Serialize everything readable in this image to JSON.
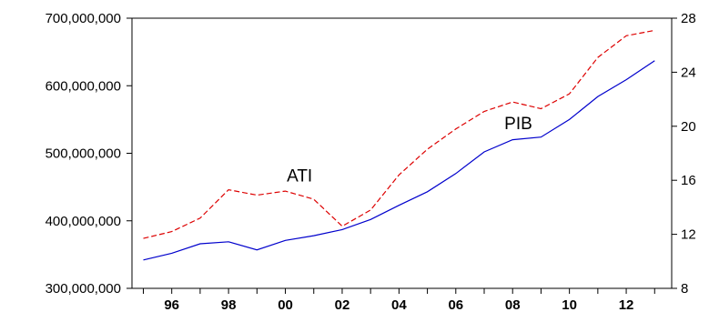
{
  "chart_data": {
    "type": "line",
    "title": "",
    "x": [
      1995,
      1996,
      1997,
      1998,
      1999,
      2000,
      2001,
      2002,
      2003,
      2004,
      2005,
      2006,
      2007,
      2008,
      2009,
      2010,
      2011,
      2012,
      2013
    ],
    "xtick_values": [
      1996,
      1998,
      2000,
      2002,
      2004,
      2006,
      2008,
      2010,
      2012
    ],
    "xtick_labels": [
      "96",
      "98",
      "00",
      "02",
      "04",
      "06",
      "08",
      "10",
      "12"
    ],
    "xlim": [
      1994.6,
      2013.6
    ],
    "left_axis": {
      "ylim": [
        300000000,
        700000000
      ],
      "ticks": [
        300000000,
        400000000,
        500000000,
        600000000,
        700000000
      ],
      "tick_labels": [
        "300,000,000",
        "400,000,000",
        "500,000,000",
        "600,000,000",
        "700,000,000"
      ]
    },
    "right_axis": {
      "ylim": [
        8,
        28
      ],
      "ticks": [
        8,
        12,
        16,
        20,
        24,
        28
      ],
      "tick_labels": [
        "8",
        "12",
        "16",
        "20",
        "24",
        "28"
      ]
    },
    "series": [
      {
        "name": "PIB",
        "axis": "left",
        "color": "#0000cc",
        "style": "solid",
        "values": [
          342000000,
          352000000,
          366000000,
          369000000,
          357000000,
          371000000,
          378000000,
          387000000,
          402000000,
          423000000,
          443000000,
          470000000,
          502000000,
          520000000,
          524000000,
          550000000,
          584000000,
          609000000,
          637000000
        ]
      },
      {
        "name": "ATI",
        "axis": "right",
        "color": "#dd0000",
        "style": "dashed",
        "values": [
          11.7,
          12.2,
          13.2,
          15.3,
          14.9,
          15.2,
          14.6,
          12.6,
          13.8,
          16.4,
          18.3,
          19.8,
          21.1,
          21.8,
          21.3,
          22.4,
          25.1,
          26.7,
          27.1
        ]
      }
    ],
    "annotations": [
      {
        "text": "ATI",
        "x": 2000.5,
        "y_right": 15.9
      },
      {
        "text": "PIB",
        "x": 2008.2,
        "y_right": 19.8
      }
    ],
    "grid": false,
    "legend": "none"
  }
}
